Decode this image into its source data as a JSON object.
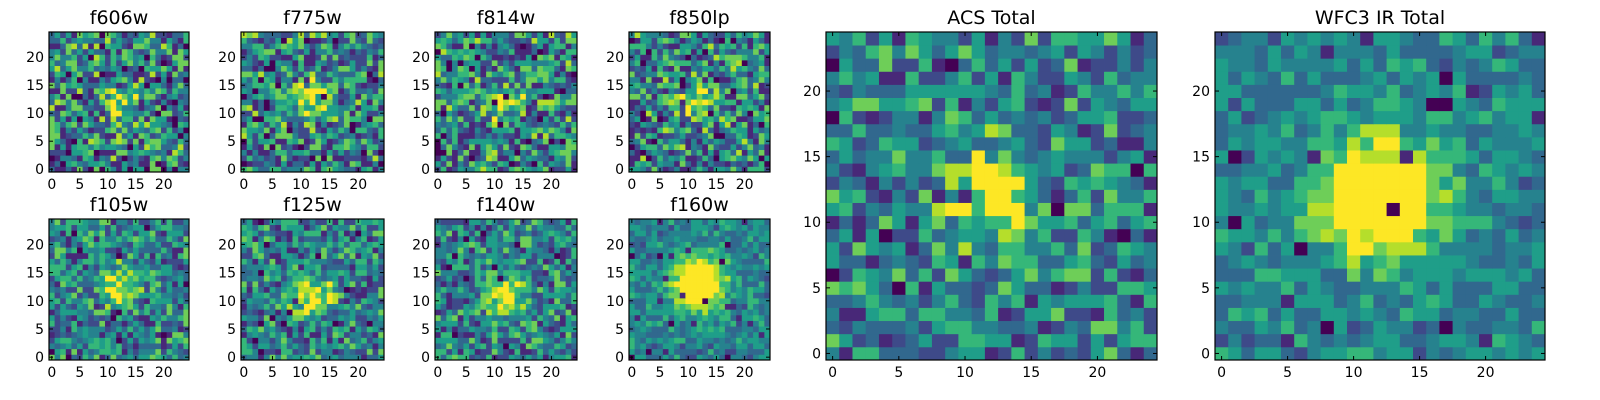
{
  "chart_data": [
    {
      "type": "heatmap",
      "title": "f606w",
      "xticks": [
        0,
        5,
        10,
        15,
        20
      ],
      "yticks": [
        0,
        5,
        10,
        15,
        20
      ],
      "xlim": [
        0,
        25
      ],
      "ylim": [
        0,
        25
      ],
      "grid_size": 25,
      "center": [
        12,
        12
      ],
      "peak": "weak",
      "colormap": "viridis"
    },
    {
      "type": "heatmap",
      "title": "f775w",
      "xticks": [
        0,
        5,
        10,
        15,
        20
      ],
      "yticks": [
        0,
        5,
        10,
        15,
        20
      ],
      "xlim": [
        0,
        25
      ],
      "ylim": [
        0,
        25
      ],
      "grid_size": 25,
      "center": [
        12,
        12
      ],
      "peak": "weak",
      "colormap": "viridis"
    },
    {
      "type": "heatmap",
      "title": "f814w",
      "xticks": [
        0,
        5,
        10,
        15,
        20
      ],
      "yticks": [
        0,
        5,
        10,
        15,
        20
      ],
      "xlim": [
        0,
        25
      ],
      "ylim": [
        0,
        25
      ],
      "grid_size": 25,
      "center": [
        12,
        12
      ],
      "peak": "weak",
      "colormap": "viridis"
    },
    {
      "type": "heatmap",
      "title": "f850lp",
      "xticks": [
        0,
        5,
        10,
        15,
        20
      ],
      "yticks": [
        0,
        5,
        10,
        15,
        20
      ],
      "xlim": [
        0,
        25
      ],
      "ylim": [
        0,
        25
      ],
      "grid_size": 25,
      "center": [
        12,
        12
      ],
      "peak": "weak",
      "colormap": "viridis"
    },
    {
      "type": "heatmap",
      "title": "f105w",
      "xticks": [
        0,
        5,
        10,
        15,
        20
      ],
      "yticks": [
        0,
        5,
        10,
        15,
        20
      ],
      "xlim": [
        0,
        25
      ],
      "ylim": [
        0,
        25
      ],
      "grid_size": 25,
      "center": [
        12,
        12
      ],
      "peak": "moderate",
      "colormap": "viridis"
    },
    {
      "type": "heatmap",
      "title": "f125w",
      "xticks": [
        0,
        5,
        10,
        15,
        20
      ],
      "yticks": [
        0,
        5,
        10,
        15,
        20
      ],
      "xlim": [
        0,
        25
      ],
      "ylim": [
        0,
        25
      ],
      "grid_size": 25,
      "center": [
        12,
        11
      ],
      "peak": "moderate",
      "colormap": "viridis"
    },
    {
      "type": "heatmap",
      "title": "f140w",
      "xticks": [
        0,
        5,
        10,
        15,
        20
      ],
      "yticks": [
        0,
        5,
        10,
        15,
        20
      ],
      "xlim": [
        0,
        25
      ],
      "ylim": [
        0,
        25
      ],
      "grid_size": 25,
      "center": [
        12,
        11
      ],
      "peak": "moderate",
      "colormap": "viridis"
    },
    {
      "type": "heatmap",
      "title": "f160w",
      "xticks": [
        0,
        5,
        10,
        15,
        20
      ],
      "yticks": [
        0,
        5,
        10,
        15,
        20
      ],
      "xlim": [
        0,
        25
      ],
      "ylim": [
        0,
        25
      ],
      "grid_size": 25,
      "center": [
        12,
        13
      ],
      "peak": "strong",
      "colormap": "viridis"
    },
    {
      "type": "heatmap",
      "title": "ACS Total",
      "xticks": [
        0,
        5,
        10,
        15,
        20
      ],
      "yticks": [
        0,
        5,
        10,
        15,
        20
      ],
      "xlim": [
        0,
        25
      ],
      "ylim": [
        0,
        25
      ],
      "grid_size": 25,
      "center": [
        12,
        12
      ],
      "peak": "moderate",
      "colormap": "viridis"
    },
    {
      "type": "heatmap",
      "title": "WFC3 IR Total",
      "xticks": [
        0,
        5,
        10,
        15,
        20
      ],
      "yticks": [
        0,
        5,
        10,
        15,
        20
      ],
      "xlim": [
        0,
        25
      ],
      "ylim": [
        0,
        25
      ],
      "grid_size": 25,
      "center": [
        12,
        12
      ],
      "peak": "strong",
      "colormap": "viridis"
    }
  ],
  "colors": {
    "viridis": [
      "#440154",
      "#482878",
      "#3e4a89",
      "#31688e",
      "#26828e",
      "#1f9e89",
      "#35b779",
      "#6ece58",
      "#b5de2b",
      "#fde725"
    ],
    "frame": "#000000",
    "background": "#ffffff"
  }
}
